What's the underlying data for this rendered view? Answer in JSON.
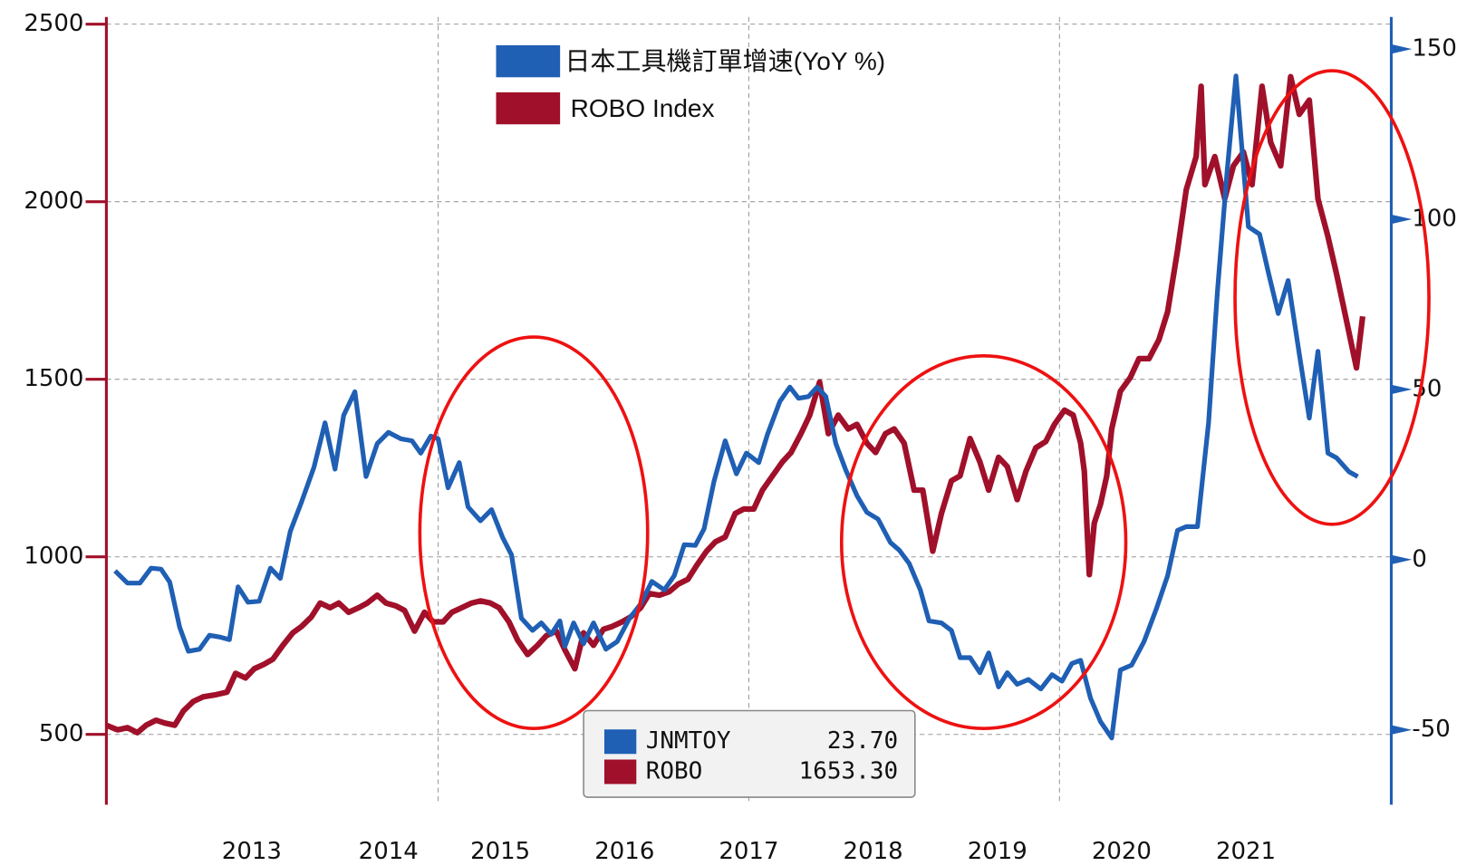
{
  "chart_data": {
    "type": "line",
    "xlim": [
      2012.33,
      2022.67
    ],
    "xticks": [
      {
        "value": 2013.5,
        "label": "2013"
      },
      {
        "value": 2014.6,
        "label": "2014"
      },
      {
        "value": 2015.5,
        "label": "2015"
      },
      {
        "value": 2016.5,
        "label": "2016"
      },
      {
        "value": 2017.5,
        "label": "2017"
      },
      {
        "value": 2018.5,
        "label": "2018"
      },
      {
        "value": 2019.5,
        "label": "2019"
      },
      {
        "value": 2020.5,
        "label": "2020"
      },
      {
        "value": 2021.5,
        "label": "2021"
      }
    ],
    "xgrid": [
      2015,
      2017.5,
      2020
    ],
    "ylim": [
      302,
      2520
    ],
    "yticks": [
      500,
      1000,
      1500,
      2000,
      2500
    ],
    "y2lim": [
      -72,
      159.4
    ],
    "y2ticks": [
      -50,
      0,
      50,
      100,
      150
    ],
    "grid": true,
    "left_axis_color": "#a0102a",
    "right_axis_color": "#1f5fb4",
    "series": [
      {
        "name": "日本工具機訂單增速(YoY %)",
        "color": "#1f5fb4",
        "axis": "y2",
        "x": [
          2012.4,
          2012.5,
          2012.6,
          2012.69,
          2012.77,
          2012.84,
          2012.92,
          2012.99,
          2013.08,
          2013.16,
          2013.24,
          2013.32,
          2013.39,
          2013.47,
          2013.56,
          2013.65,
          2013.73,
          2013.81,
          2013.9,
          2014.0,
          2014.09,
          2014.17,
          2014.24,
          2014.33,
          2014.42,
          2014.51,
          2014.6,
          2014.7,
          2014.79,
          2014.86,
          2014.94,
          2015.0,
          2015.08,
          2015.17,
          2015.24,
          2015.34,
          2015.43,
          2015.52,
          2015.59,
          2015.67,
          2015.76,
          2015.83,
          2015.91,
          2015.98,
          2016.02,
          2016.09,
          2016.17,
          2016.25,
          2016.35,
          2016.44,
          2016.54,
          2016.63,
          2016.72,
          2016.82,
          2016.9,
          2016.98,
          2017.07,
          2017.14,
          2017.22,
          2017.31,
          2017.4,
          2017.48,
          2017.58,
          2017.65,
          2017.75,
          2017.83,
          2017.9,
          2017.98,
          2018.05,
          2018.12,
          2018.2,
          2018.28,
          2018.37,
          2018.45,
          2018.54,
          2018.64,
          2018.71,
          2018.79,
          2018.88,
          2018.95,
          2019.05,
          2019.13,
          2019.2,
          2019.28,
          2019.36,
          2019.43,
          2019.51,
          2019.58,
          2019.66,
          2019.75,
          2019.85,
          2019.94,
          2020.02,
          2020.1,
          2020.17,
          2020.25,
          2020.33,
          2020.42,
          2020.49,
          2020.58,
          2020.68,
          2020.78,
          2020.87,
          2020.95,
          2021.02,
          2021.11,
          2021.2,
          2021.27,
          2021.35,
          2021.42,
          2021.52,
          2021.61,
          2021.68,
          2021.76,
          2021.84,
          2021.93,
          2022.01,
          2022.08,
          2022.16,
          2022.23,
          2022.33,
          2022.4
        ],
        "values": [
          -3.3,
          -6.9,
          -6.9,
          -2.5,
          -2.8,
          -6.6,
          -19.9,
          -26.9,
          -26.3,
          -22.2,
          -22.7,
          -23.5,
          -8.0,
          -12.5,
          -12.2,
          -2.5,
          -5.5,
          8.3,
          16.9,
          27.1,
          40.2,
          26.6,
          42.4,
          49.3,
          24.4,
          34.1,
          37.4,
          35.5,
          34.9,
          31.3,
          36.3,
          35.5,
          21.1,
          28.5,
          15.5,
          11.4,
          14.7,
          6.4,
          1.4,
          -17.2,
          -20.8,
          -18.6,
          -21.9,
          -18.0,
          -25.5,
          -18.6,
          -24.7,
          -18.6,
          -26.3,
          -24.1,
          -17.2,
          -13.0,
          -6.4,
          -8.9,
          -4.7,
          4.4,
          4.2,
          9.1,
          23.0,
          34.9,
          25.2,
          31.3,
          28.5,
          36.8,
          46.5,
          50.7,
          47.4,
          47.9,
          50.7,
          47.9,
          34.1,
          26.3,
          18.8,
          13.9,
          11.9,
          5.0,
          2.8,
          -1.1,
          -8.9,
          -18.0,
          -18.6,
          -20.8,
          -28.8,
          -28.8,
          -33.2,
          -27.4,
          -37.4,
          -33.2,
          -36.6,
          -35.2,
          -38.0,
          -33.8,
          -35.7,
          -30.5,
          -29.6,
          -40.7,
          -47.6,
          -52.4,
          -32.4,
          -31.0,
          -24.1,
          -14.4,
          -4.7,
          8.6,
          9.7,
          9.7,
          40.2,
          78.4,
          114.4,
          142.1,
          97.8,
          95.6,
          84.5,
          72.3,
          82.0,
          60.4,
          41.6,
          61.2,
          31.3,
          29.9,
          25.8,
          24.4
        ]
      },
      {
        "name": "ROBO Index",
        "color": "#a0102a",
        "axis": "y",
        "x": [
          2012.33,
          2012.42,
          2012.5,
          2012.58,
          2012.65,
          2012.73,
          2012.8,
          2012.88,
          2012.95,
          2013.03,
          2013.11,
          2013.2,
          2013.3,
          2013.37,
          2013.45,
          2013.52,
          2013.6,
          2013.67,
          2013.75,
          2013.83,
          2013.9,
          2013.98,
          2014.05,
          2014.13,
          2014.2,
          2014.28,
          2014.36,
          2014.43,
          2014.51,
          2014.58,
          2014.66,
          2014.73,
          2014.81,
          2014.89,
          2014.96,
          2015.04,
          2015.11,
          2015.19,
          2015.27,
          2015.34,
          2015.42,
          2015.49,
          2015.57,
          2015.64,
          2015.72,
          2015.8,
          2015.87,
          2015.95,
          2016.02,
          2016.1,
          2016.17,
          2016.25,
          2016.33,
          2016.4,
          2016.48,
          2016.55,
          2016.63,
          2016.7,
          2016.78,
          2016.86,
          2016.93,
          2017.01,
          2017.08,
          2017.16,
          2017.23,
          2017.31,
          2017.39,
          2017.46,
          2017.54,
          2017.61,
          2017.69,
          2017.77,
          2017.84,
          2017.92,
          2017.99,
          2018.07,
          2018.14,
          2018.22,
          2018.3,
          2018.37,
          2018.45,
          2018.52,
          2018.6,
          2018.67,
          2018.75,
          2018.83,
          2018.9,
          2018.98,
          2019.05,
          2019.13,
          2019.2,
          2019.28,
          2019.36,
          2019.43,
          2019.51,
          2019.58,
          2019.66,
          2019.73,
          2019.81,
          2019.89,
          2019.96,
          2020.04,
          2020.11,
          2020.17,
          2020.2,
          2020.24,
          2020.28,
          2020.33,
          2020.38,
          2020.42,
          2020.49,
          2020.57,
          2020.64,
          2020.72,
          2020.8,
          2020.87,
          2020.95,
          2021.02,
          2021.1,
          2021.14,
          2021.17,
          2021.25,
          2021.33,
          2021.4,
          2021.48,
          2021.55,
          2021.63,
          2021.7,
          2021.78,
          2021.86,
          2021.93,
          2022.01,
          2022.08,
          2022.16,
          2022.23,
          2022.31,
          2022.39,
          2022.44
        ],
        "values": [
          526,
          513,
          519,
          505,
          526,
          540,
          532,
          526,
          566,
          593,
          606,
          611,
          619,
          672,
          659,
          685,
          698,
          712,
          751,
          786,
          804,
          831,
          870,
          857,
          870,
          844,
          857,
          870,
          892,
          870,
          862,
          849,
          791,
          844,
          817,
          817,
          844,
          857,
          870,
          876,
          870,
          857,
          817,
          765,
          725,
          751,
          778,
          791,
          738,
          685,
          786,
          751,
          796,
          804,
          817,
          831,
          857,
          897,
          892,
          902,
          923,
          937,
          976,
          1016,
          1042,
          1056,
          1122,
          1135,
          1135,
          1188,
          1228,
          1267,
          1294,
          1347,
          1399,
          1492,
          1347,
          1399,
          1360,
          1373,
          1320,
          1294,
          1347,
          1360,
          1320,
          1188,
          1188,
          1016,
          1122,
          1214,
          1228,
          1333,
          1267,
          1188,
          1280,
          1254,
          1161,
          1241,
          1307,
          1325,
          1373,
          1413,
          1399,
          1320,
          1241,
          950,
          1095,
          1148,
          1228,
          1360,
          1466,
          1505,
          1558,
          1558,
          1611,
          1690,
          1862,
          2034,
          2127,
          2325,
          2048,
          2127,
          2008,
          2101,
          2140,
          2048,
          2325,
          2167,
          2101,
          2352,
          2246,
          2286,
          2008,
          1902,
          1796,
          1664,
          1532,
          1677
        ]
      }
    ],
    "last_values": [
      {
        "label": "JNMTOY",
        "value": "23.70",
        "color": "#1f5fb4"
      },
      {
        "label": "ROBO",
        "value": "1653.30",
        "color": "#a0102a"
      }
    ]
  }
}
